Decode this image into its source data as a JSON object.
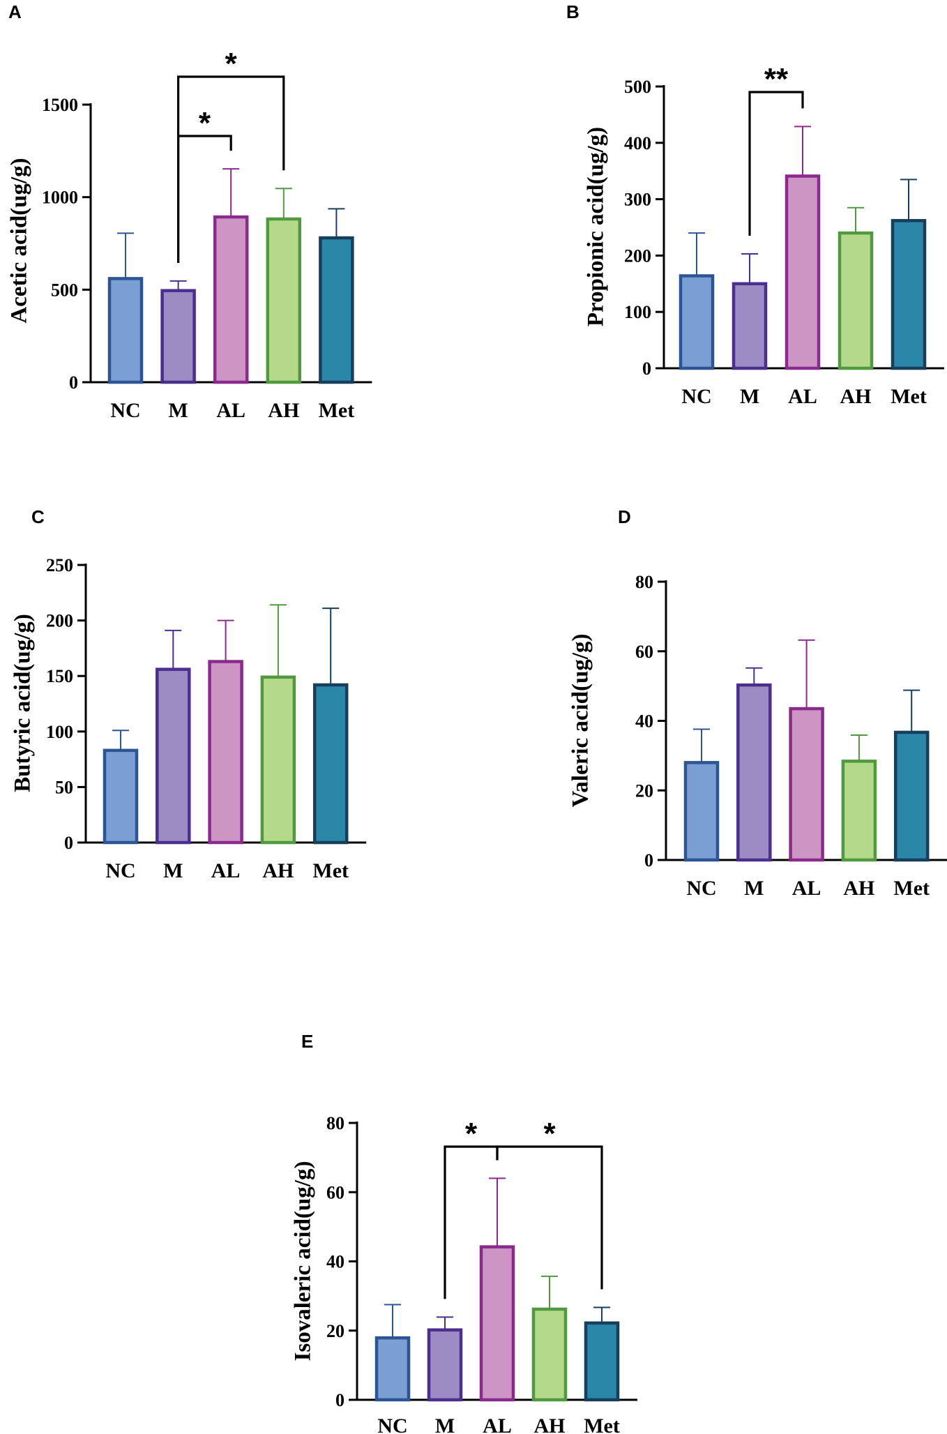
{
  "figure": {
    "colors": {
      "NC": {
        "fill": "#7b9fd4",
        "stroke": "#2d5594"
      },
      "M": {
        "fill": "#9d8bc3",
        "stroke": "#4a2f8f"
      },
      "AL": {
        "fill": "#cc95c3",
        "stroke": "#8a2a8c"
      },
      "AH": {
        "fill": "#b5d98a",
        "stroke": "#4f9a3f"
      },
      "Met": {
        "fill": "#2b87a8",
        "stroke": "#173f5c"
      }
    }
  },
  "chart_data": [
    {
      "panel": "A",
      "type": "bar",
      "categories": [
        "NC",
        "M",
        "AL",
        "AH",
        "Met"
      ],
      "values": [
        560,
        495,
        893,
        882,
        780
      ],
      "errors": [
        245,
        52,
        260,
        165,
        157
      ],
      "ylabel": "Acetic acid(ug/g)",
      "ylim": [
        0,
        1500
      ],
      "yticks": [
        0,
        500,
        1000,
        1500
      ],
      "significance": [
        {
          "from": "M",
          "to": "AL",
          "label": "*"
        },
        {
          "from": "M",
          "to": "AH",
          "label": "*"
        }
      ]
    },
    {
      "panel": "B",
      "type": "bar",
      "categories": [
        "NC",
        "M",
        "AL",
        "AH",
        "Met"
      ],
      "values": [
        164,
        150,
        341,
        240,
        262
      ],
      "errors": [
        76,
        53,
        88,
        45,
        73
      ],
      "ylabel": "Propionic acid(ug/g)",
      "ylim": [
        0,
        500
      ],
      "yticks": [
        0,
        100,
        200,
        300,
        400,
        500
      ],
      "significance": [
        {
          "from": "M",
          "to": "AL",
          "label": "**"
        }
      ]
    },
    {
      "panel": "C",
      "type": "bar",
      "categories": [
        "NC",
        "M",
        "AL",
        "AH",
        "Met"
      ],
      "values": [
        83,
        156,
        163,
        149,
        142
      ],
      "errors": [
        18,
        35,
        37,
        65,
        69
      ],
      "ylabel": "Butyric acid(ug/g)",
      "ylim": [
        0,
        250
      ],
      "yticks": [
        0,
        50,
        100,
        150,
        200,
        250
      ],
      "significance": []
    },
    {
      "panel": "D",
      "type": "bar",
      "categories": [
        "NC",
        "M",
        "AL",
        "AH",
        "Met"
      ],
      "values": [
        28,
        50.3,
        43.5,
        28.4,
        36.7
      ],
      "errors": [
        9.6,
        4.9,
        19.7,
        7.5,
        12.1
      ],
      "ylabel": "Valeric acid(ug/g)",
      "ylim": [
        0,
        80
      ],
      "yticks": [
        0,
        20,
        40,
        60,
        80
      ],
      "significance": []
    },
    {
      "panel": "E",
      "type": "bar",
      "categories": [
        "NC",
        "M",
        "AL",
        "AH",
        "Met"
      ],
      "values": [
        17.9,
        20.2,
        44.2,
        26.2,
        22.2
      ],
      "errors": [
        9.6,
        3.7,
        19.8,
        9.5,
        4.5
      ],
      "ylabel": "Isovaleric acid(ug/g)",
      "ylim": [
        0,
        80
      ],
      "yticks": [
        0,
        20,
        40,
        60,
        80
      ],
      "significance": [
        {
          "from": "M",
          "to": "AL",
          "label": "*"
        },
        {
          "from": "AL",
          "to": "Met",
          "label": "*"
        }
      ]
    }
  ]
}
